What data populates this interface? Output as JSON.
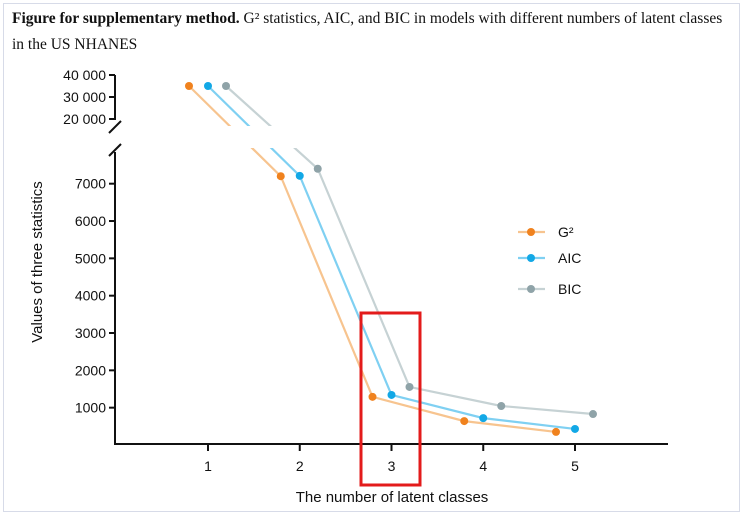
{
  "caption": {
    "bold": "Figure for supplementary method.",
    "text": " G² statistics, AIC, and BIC in models with different numbers of latent classes in the US NHANES"
  },
  "chart_data": {
    "type": "line",
    "title": "",
    "xlabel": "The number of latent classes",
    "ylabel": "Values of three statistics",
    "categories": [
      1,
      2,
      3,
      4,
      5
    ],
    "y_axis_broken": true,
    "ylim_lower": [
      0,
      7800
    ],
    "ylim_upper": [
      15000,
      40000
    ],
    "yticks_lower": [
      "1000",
      "2000",
      "3000",
      "4000",
      "5000",
      "6000",
      "7000"
    ],
    "yticks_upper": [
      "20 000",
      "30 000",
      "40 000"
    ],
    "xticks": [
      "1",
      "2",
      "3",
      "4",
      "5"
    ],
    "legend_position": "right",
    "series": [
      {
        "name": "G²",
        "color": "#f0821e",
        "line_color": "#f7c48f",
        "values": [
          35000,
          7200,
          1290,
          640,
          350
        ]
      },
      {
        "name": "AIC",
        "color": "#12a8e6",
        "line_color": "#7fd0f2",
        "values": [
          35000,
          7210,
          1340,
          720,
          430
        ]
      },
      {
        "name": "BIC",
        "color": "#8fa3a8",
        "line_color": "#c6d2d4",
        "values": [
          35000,
          7400,
          1555,
          1045,
          830
        ]
      }
    ],
    "highlight": {
      "category": 3,
      "color": "#e31b1b"
    }
  }
}
